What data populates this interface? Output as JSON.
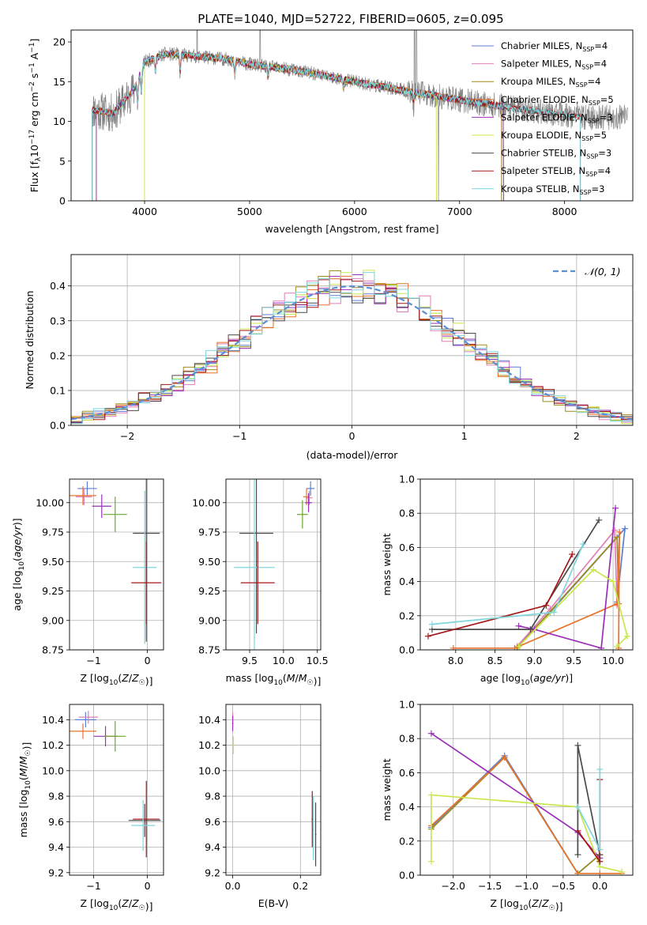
{
  "figure_title": "PLATE=1040, MJD=52722, FIBERID=0605, z=0.095",
  "colors": {
    "Chabrier MILES": "#5b7fd6",
    "Salpeter MILES": "#e07fb6",
    "Kroupa MILES": "#a08c1e",
    "Chabrier ELODIE": "#e8732a",
    "Salpeter ELODIE": "#9b2fb8",
    "Kroupa ELODIE": "#c8e84a",
    "Chabrier STELIB": "#4a4a4a",
    "Salpeter STELIB": "#a51818",
    "Kroupa STELIB": "#7fd6dc",
    "ELODIE_extra": "#6aa82a",
    "gaussian": "#5b8fd6"
  },
  "chart_data": [
    {
      "id": "spectrum",
      "type": "line",
      "title": "PLATE=1040, MJD=52722, FIBERID=0605, z=0.095",
      "xlabel": "wavelength [Angstrom, rest frame]",
      "ylabel": "Flux [f$_\\lambda$10$^{-17}$ erg cm$^{-2}$ s$^{-1}$ A$^{-1}$]",
      "xlim": [
        3300,
        8650
      ],
      "ylim": [
        0,
        21.5
      ],
      "xticks": [
        4000,
        5000,
        6000,
        7000,
        8000
      ],
      "yticks": [
        0,
        5,
        10,
        15,
        20
      ],
      "grid": false,
      "legend_position": "top-right",
      "legend": [
        {
          "name": "Chabrier MILES",
          "nssp": "4"
        },
        {
          "name": "Salpeter MILES",
          "nssp": "4"
        },
        {
          "name": "Kroupa MILES",
          "nssp": "4"
        },
        {
          "name": "Chabrier ELODIE",
          "nssp": "5"
        },
        {
          "name": "Salpeter ELODIE",
          "nssp": "3"
        },
        {
          "name": "Kroupa ELODIE",
          "nssp": "5"
        },
        {
          "name": "Chabrier STELIB",
          "nssp": "3"
        },
        {
          "name": "Salpeter STELIB",
          "nssp": "4"
        },
        {
          "name": "Kroupa STELIB",
          "nssp": "3"
        }
      ],
      "continuum": {
        "x": [
          3500,
          3700,
          3900,
          4000,
          4200,
          4500,
          4800,
          5000,
          5500,
          6000,
          6500,
          7000,
          7500,
          8000,
          8200
        ],
        "y": [
          11.5,
          11.0,
          14.0,
          17.5,
          18.5,
          18.2,
          17.8,
          17.2,
          16.3,
          15.0,
          13.8,
          12.7,
          11.7,
          10.8,
          10.5
        ]
      },
      "models": [
        {
          "name": "Chabrier MILES",
          "range": [
            3500,
            7400
          ]
        },
        {
          "name": "Salpeter MILES",
          "range": [
            3500,
            7400
          ]
        },
        {
          "name": "Kroupa MILES",
          "range": [
            3500,
            7400
          ]
        },
        {
          "name": "Chabrier ELODIE",
          "range": [
            3540,
            7420
          ]
        },
        {
          "name": "Salpeter ELODIE",
          "range": [
            3540,
            7420
          ]
        },
        {
          "name": "Kroupa ELODIE",
          "range": [
            4000,
            6780
          ]
        },
        {
          "name": "Chabrier STELIB",
          "range": [
            3500,
            8150
          ]
        },
        {
          "name": "Salpeter STELIB",
          "range": [
            3500,
            8150
          ]
        },
        {
          "name": "Kroupa STELIB",
          "range": [
            3500,
            8150
          ]
        }
      ]
    },
    {
      "id": "residuals",
      "type": "line",
      "xlabel": "(data-model)/error",
      "ylabel": "Normed distribution",
      "xlim": [
        -2.5,
        2.5
      ],
      "ylim": [
        0,
        0.49
      ],
      "xticks": [
        -2,
        -1,
        0,
        1,
        2
      ],
      "yticks": [
        0.0,
        0.1,
        0.2,
        0.3,
        0.4
      ],
      "grid": true,
      "legend_position": "top-right",
      "legend": [
        {
          "name": "𝒩(0, 1)"
        }
      ],
      "bin_width": 0.1,
      "gaussian": {
        "mean": 0,
        "sigma": 1
      }
    },
    {
      "id": "age_vs_Z",
      "type": "scatter",
      "xlabel": "Z [log₁₀(Z/Z☉)]",
      "ylabel": "age  [log₁₀(age/yr)]",
      "xlim": [
        -1.45,
        0.3
      ],
      "ylim": [
        8.75,
        10.2
      ],
      "xticks": [
        -1,
        0
      ],
      "yticks": [
        8.75,
        9.0,
        9.25,
        9.5,
        9.75,
        10.0
      ],
      "grid": true,
      "points": [
        {
          "model": "Chabrier MILES",
          "x": -1.12,
          "xerr": 0.18,
          "y": 10.12,
          "yerr": 0.06
        },
        {
          "model": "Salpeter MILES",
          "x": -1.18,
          "xerr": 0.15,
          "y": 10.05,
          "yerr": 0.07
        },
        {
          "model": "Chabrier ELODIE",
          "x": -1.2,
          "xerr": 0.25,
          "y": 10.06,
          "yerr": 0.08
        },
        {
          "model": "Salpeter ELODIE",
          "x": -0.85,
          "xerr": 0.18,
          "y": 9.97,
          "yerr": 0.1
        },
        {
          "model": "ELODIE_extra",
          "x": -0.6,
          "xerr": 0.22,
          "y": 9.9,
          "yerr": 0.15
        },
        {
          "model": "Chabrier STELIB",
          "x": -0.02,
          "xerr": 0.25,
          "y": 9.74,
          "yerr": 0.92
        },
        {
          "model": "Kroupa STELIB",
          "x": -0.05,
          "xerr": 0.22,
          "y": 9.45,
          "yerr": 0.65
        },
        {
          "model": "Salpeter STELIB",
          "x": -0.02,
          "xerr": 0.28,
          "y": 9.32,
          "yerr": 0.35
        }
      ]
    },
    {
      "id": "age_vs_mass",
      "type": "scatter",
      "xlabel": "mass [log₁₀(M/M☉)]",
      "xlim": [
        9.15,
        10.55
      ],
      "ylim": [
        8.75,
        10.2
      ],
      "xticks": [
        9.5,
        10.0,
        10.5
      ],
      "yticks": [
        8.75,
        9.0,
        9.25,
        9.5,
        9.75,
        10.0
      ],
      "grid": true,
      "points": [
        {
          "model": "Chabrier MILES",
          "x": 10.4,
          "xerr": 0.06,
          "y": 10.12,
          "yerr": 0.06
        },
        {
          "model": "Salpeter MILES",
          "x": 10.38,
          "xerr": 0.05,
          "y": 10.04,
          "yerr": 0.06
        },
        {
          "model": "Chabrier ELODIE",
          "x": 10.34,
          "xerr": 0.05,
          "y": 10.05,
          "yerr": 0.07
        },
        {
          "model": "Salpeter ELODIE",
          "x": 10.37,
          "xerr": 0.05,
          "y": 10.0,
          "yerr": 0.08
        },
        {
          "model": "ELODIE_extra",
          "x": 10.28,
          "xerr": 0.08,
          "y": 9.9,
          "yerr": 0.12
        },
        {
          "model": "Chabrier STELIB",
          "x": 9.6,
          "xerr": 0.25,
          "y": 9.74,
          "yerr": 0.85
        },
        {
          "model": "Kroupa STELIB",
          "x": 9.57,
          "xerr": 0.3,
          "y": 9.45,
          "yerr": 0.75
        },
        {
          "model": "Salpeter STELIB",
          "x": 9.62,
          "xerr": 0.25,
          "y": 9.32,
          "yerr": 0.35
        }
      ]
    },
    {
      "id": "weight_vs_age",
      "type": "line",
      "xlabel": "age  [log₁₀(age/yr)]",
      "ylabel": "mass weight",
      "xlim": [
        7.55,
        10.25
      ],
      "ylim": [
        0,
        1.0
      ],
      "xticks": [
        8.0,
        8.5,
        9.0,
        9.5,
        10.0
      ],
      "yticks": [
        0.0,
        0.2,
        0.4,
        0.6,
        0.8,
        1.0
      ],
      "grid": true,
      "series": [
        {
          "model": "Chabrier MILES",
          "x": [
            8.78,
            9.2,
            10.15,
            10.05
          ],
          "y": [
            0.02,
            0.22,
            0.71,
            0.28
          ]
        },
        {
          "model": "Salpeter MILES",
          "x": [
            8.78,
            9.2,
            10.02,
            10.05
          ],
          "y": [
            0.02,
            0.24,
            0.7,
            0.26
          ]
        },
        {
          "model": "Kroupa MILES",
          "x": [
            8.78,
            8.8,
            10.05,
            10.07
          ],
          "y": [
            0.01,
            0.02,
            0.66,
            0.27
          ]
        },
        {
          "model": "Chabrier ELODIE",
          "x": [
            7.97,
            8.75,
            10.05,
            10.08,
            10.07
          ],
          "y": [
            0.01,
            0.01,
            0.27,
            0.69,
            0.01
          ]
        },
        {
          "model": "Salpeter ELODIE",
          "x": [
            8.8,
            9.0,
            9.85,
            10.03
          ],
          "y": [
            0.14,
            0.12,
            0.01,
            0.83
          ]
        },
        {
          "model": "Kroupa ELODIE",
          "x": [
            8.8,
            9.75,
            10.0,
            10.18,
            10.05
          ],
          "y": [
            0.02,
            0.47,
            0.4,
            0.08,
            0.02
          ]
        },
        {
          "model": "Chabrier STELIB",
          "x": [
            7.7,
            8.95,
            9.82
          ],
          "y": [
            0.12,
            0.12,
            0.76
          ]
        },
        {
          "model": "Salpeter STELIB",
          "x": [
            7.65,
            9.15,
            9.48
          ],
          "y": [
            0.08,
            0.26,
            0.56
          ]
        },
        {
          "model": "Kroupa STELIB",
          "x": [
            7.7,
            9.25,
            9.62
          ],
          "y": [
            0.15,
            0.22,
            0.62
          ]
        }
      ]
    },
    {
      "id": "mass_vs_Z",
      "type": "scatter",
      "xlabel": "Z [log₁₀(Z/Z☉)]",
      "ylabel": "mass [log₁₀(M/M☉)]",
      "xlim": [
        -1.45,
        0.3
      ],
      "ylim": [
        9.18,
        10.52
      ],
      "xticks": [
        -1,
        0
      ],
      "yticks": [
        9.2,
        9.4,
        9.6,
        9.8,
        10.0,
        10.2,
        10.4
      ],
      "grid": true,
      "points": [
        {
          "model": "Chabrier MILES",
          "x": -1.15,
          "xerr": 0.2,
          "y": 10.4,
          "yerr": 0.06
        },
        {
          "model": "Salpeter MILES",
          "x": -1.1,
          "xerr": 0.18,
          "y": 10.42,
          "yerr": 0.05
        },
        {
          "model": "Chabrier ELODIE",
          "x": -1.2,
          "xerr": 0.25,
          "y": 10.31,
          "yerr": 0.06
        },
        {
          "model": "Salpeter ELODIE",
          "x": -0.78,
          "xerr": 0.22,
          "y": 10.27,
          "yerr": 0.08
        },
        {
          "model": "ELODIE_extra",
          "x": -0.6,
          "xerr": 0.2,
          "y": 10.27,
          "yerr": 0.12
        },
        {
          "model": "Chabrier STELIB",
          "x": -0.05,
          "xerr": 0.3,
          "y": 9.61,
          "yerr": 0.13
        },
        {
          "model": "Salpeter STELIB",
          "x": -0.02,
          "xerr": 0.25,
          "y": 9.62,
          "yerr": 0.3
        },
        {
          "model": "Kroupa STELIB",
          "x": -0.08,
          "xerr": 0.22,
          "y": 9.57,
          "yerr": 0.2
        }
      ]
    },
    {
      "id": "mass_vs_EBV",
      "type": "scatter",
      "xlabel": "E(B-V)",
      "xlim": [
        -0.02,
        0.26
      ],
      "ylim": [
        9.18,
        10.52
      ],
      "xticks": [
        0.0,
        0.2
      ],
      "yticks": [
        9.2,
        9.4,
        9.6,
        9.8,
        10.0,
        10.2,
        10.4
      ],
      "grid": true,
      "points": [
        {
          "model": "Salpeter MILES",
          "x": 0.0,
          "xerr": 0.002,
          "y": 10.42,
          "yerr": 0.04
        },
        {
          "model": "Salpeter ELODIE",
          "x": 0.0,
          "xerr": 0.002,
          "y": 10.37,
          "yerr": 0.06
        },
        {
          "model": "Kroupa ELODIE",
          "x": 0.002,
          "xerr": 0.002,
          "y": 10.2,
          "yerr": 0.07
        },
        {
          "model": "Salpeter STELIB",
          "x": 0.235,
          "xerr": 0.002,
          "y": 9.62,
          "yerr": 0.22
        },
        {
          "model": "Chabrier STELIB",
          "x": 0.245,
          "xerr": 0.002,
          "y": 9.5,
          "yerr": 0.25
        },
        {
          "model": "Kroupa STELIB",
          "x": 0.238,
          "xerr": 0.002,
          "y": 9.55,
          "yerr": 0.25
        }
      ]
    },
    {
      "id": "weight_vs_Z",
      "type": "line",
      "xlabel": "Z [log₁₀(Z/Z☉)]",
      "ylabel": "mass weight",
      "xlim": [
        -2.45,
        0.45
      ],
      "ylim": [
        0,
        1.0
      ],
      "xticks": [
        -2.0,
        -1.5,
        -1.0,
        -0.5,
        0.0
      ],
      "yticks": [
        0.0,
        0.2,
        0.4,
        0.6,
        0.8,
        1.0
      ],
      "grid": true,
      "series": [
        {
          "model": "Chabrier MILES",
          "x": [
            -2.3,
            -1.3,
            -0.3,
            0.0
          ],
          "y": [
            0.28,
            0.7,
            0.01,
            0.12
          ]
        },
        {
          "model": "Kroupa MILES",
          "x": [
            -2.3,
            -1.3,
            -0.3,
            0.0
          ],
          "y": [
            0.27,
            0.69,
            0.01,
            0.12
          ]
        },
        {
          "model": "Chabrier ELODIE",
          "x": [
            -2.3,
            -1.3,
            -0.3,
            0.0,
            0.3
          ],
          "y": [
            0.29,
            0.69,
            0.01,
            0.01,
            0.01
          ]
        },
        {
          "model": "Salpeter ELODIE",
          "x": [
            -2.3,
            -0.3,
            0.0
          ],
          "y": [
            0.83,
            0.25,
            0.1
          ]
        },
        {
          "model": "Kroupa ELODIE",
          "x": [
            -2.3,
            -2.3,
            -0.3,
            0.0,
            0.3
          ],
          "y": [
            0.08,
            0.47,
            0.4,
            0.05,
            0.02
          ]
        },
        {
          "model": "Chabrier STELIB",
          "x": [
            -0.3,
            -0.3,
            0.0
          ],
          "y": [
            0.12,
            0.76,
            0.12
          ]
        },
        {
          "model": "Salpeter STELIB",
          "x": [
            -0.3,
            0.0,
            0.0
          ],
          "y": [
            0.26,
            0.08,
            0.56
          ]
        },
        {
          "model": "Kroupa STELIB",
          "x": [
            -0.3,
            0.0,
            0.0
          ],
          "y": [
            0.4,
            0.15,
            0.62
          ]
        }
      ]
    }
  ]
}
